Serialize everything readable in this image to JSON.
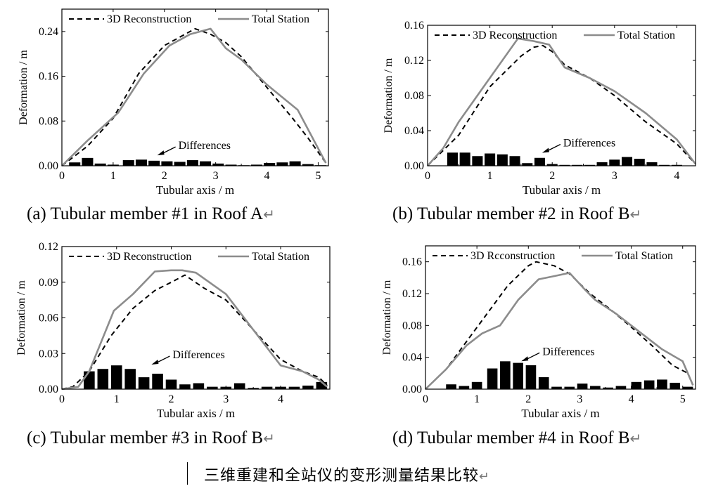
{
  "figure_caption": "三维重建和全站仪的变形测量结果比较",
  "return_mark": "↵",
  "legend_labels": [
    "3D Reconstruction",
    "Total Station"
  ],
  "chart_data": [
    {
      "type": "line",
      "subcaption": "(a) Tubular member #1 in Roof A",
      "xlabel": "Tubular axis / m",
      "ylabel": "Deformation / m",
      "xlim": [
        0,
        5.2
      ],
      "ylim": [
        0,
        0.28
      ],
      "xticks": [
        0,
        1,
        2,
        3,
        4,
        5
      ],
      "yticks": [
        0.0,
        0.08,
        0.16,
        0.24
      ],
      "ytick_labels": [
        "0.00",
        "0.08",
        "0.16",
        "0.24"
      ],
      "legend": "top",
      "annotation": {
        "text": "Differences",
        "x": 2.3,
        "y": 0.03
      },
      "series": [
        {
          "name": "3D Reconstruction",
          "style": "dashed",
          "color": "#000000",
          "x": [
            0,
            0.5,
            1.0,
            1.5,
            2.0,
            2.5,
            2.6,
            2.9,
            3.2,
            3.5,
            4.0,
            4.5,
            4.8,
            5.15
          ],
          "y": [
            0,
            0.035,
            0.085,
            0.165,
            0.215,
            0.24,
            0.245,
            0.235,
            0.22,
            0.195,
            0.14,
            0.085,
            0.05,
            0.005
          ]
        },
        {
          "name": "Total Station",
          "style": "solid",
          "color": "#8c8c8c",
          "x": [
            0,
            0.5,
            1.1,
            1.6,
            2.1,
            2.5,
            2.9,
            3.2,
            3.5,
            4.0,
            4.6,
            5.15
          ],
          "y": [
            0,
            0.045,
            0.095,
            0.165,
            0.215,
            0.235,
            0.245,
            0.21,
            0.19,
            0.145,
            0.1,
            0.005
          ]
        }
      ],
      "bars": {
        "name": "Differences",
        "width": 0.22,
        "x": [
          0.25,
          0.5,
          0.75,
          1.0,
          1.3,
          1.55,
          1.8,
          2.05,
          2.3,
          2.55,
          2.8,
          3.05,
          3.3,
          3.55,
          3.8,
          4.05,
          4.3,
          4.55,
          4.8,
          5.05
        ],
        "y": [
          0.006,
          0.014,
          0.004,
          0.002,
          0.01,
          0.011,
          0.009,
          0.008,
          0.007,
          0.01,
          0.008,
          0.004,
          0.002,
          0.001,
          0.002,
          0.005,
          0.006,
          0.008,
          0.003,
          0.001
        ]
      }
    },
    {
      "type": "line",
      "subcaption": "(b) Tubular member #2 in Roof B",
      "xlabel": "Tubular axis / m",
      "ylabel": "Deformation / m",
      "xlim": [
        0,
        4.3
      ],
      "ylim": [
        0,
        0.16
      ],
      "xticks": [
        0,
        1,
        2,
        3,
        4
      ],
      "yticks": [
        0.0,
        0.04,
        0.08,
        0.12,
        0.16
      ],
      "ytick_labels": [
        "0.00",
        "0.04",
        "0.08",
        "0.12",
        "0.16"
      ],
      "legend": "top",
      "annotation": {
        "text": "Differences",
        "x": 2.2,
        "y": 0.022
      },
      "series": [
        {
          "name": "3D Reconstruction",
          "style": "dashed",
          "color": "#000000",
          "x": [
            0,
            0.5,
            1.0,
            1.5,
            1.7,
            1.85,
            2.0,
            2.2,
            2.6,
            3.0,
            3.5,
            4.0,
            4.3
          ],
          "y": [
            0,
            0.035,
            0.09,
            0.125,
            0.135,
            0.137,
            0.13,
            0.115,
            0.1,
            0.08,
            0.05,
            0.025,
            0.002
          ]
        },
        {
          "name": "Total Station",
          "style": "solid",
          "color": "#8c8c8c",
          "x": [
            0,
            0.25,
            0.5,
            0.9,
            1.45,
            1.7,
            1.95,
            2.2,
            2.6,
            3.0,
            3.5,
            4.0,
            4.3
          ],
          "y": [
            0,
            0.02,
            0.05,
            0.09,
            0.145,
            0.142,
            0.138,
            0.112,
            0.1,
            0.085,
            0.06,
            0.03,
            0.002
          ]
        }
      ],
      "bars": {
        "name": "Differences",
        "width": 0.17,
        "x": [
          0.4,
          0.6,
          0.8,
          1.0,
          1.2,
          1.4,
          1.6,
          1.8,
          2.0,
          2.2,
          2.4,
          2.6,
          2.8,
          3.0,
          3.2,
          3.4,
          3.6,
          3.8,
          4.0
        ],
        "y": [
          0.015,
          0.015,
          0.011,
          0.014,
          0.013,
          0.011,
          0.003,
          0.009,
          0.002,
          0.001,
          0.001,
          0.001,
          0.004,
          0.007,
          0.01,
          0.008,
          0.004,
          0.001,
          0.001
        ]
      }
    },
    {
      "type": "line",
      "subcaption": "(c) Tubular member #3 in Roof B",
      "xlabel": "Tubular axis / m",
      "ylabel": "Deformation / m",
      "xlim": [
        0,
        4.9
      ],
      "ylim": [
        0,
        0.12
      ],
      "xticks": [
        0,
        1,
        2,
        3,
        4
      ],
      "yticks": [
        0.0,
        0.03,
        0.06,
        0.09,
        0.12
      ],
      "ytick_labels": [
        "0.00",
        "0.03",
        "0.06",
        "0.09",
        "0.12"
      ],
      "legend": "top",
      "annotation": {
        "text": "Differences",
        "x": 2.05,
        "y": 0.026
      },
      "series": [
        {
          "name": "3D Reconstruction",
          "style": "dashed",
          "color": "#000000",
          "x": [
            0,
            0.2,
            0.5,
            0.9,
            1.3,
            1.7,
            2.0,
            2.25,
            2.6,
            3.0,
            3.5,
            3.8,
            4.0,
            4.4,
            4.7,
            4.85
          ],
          "y": [
            0,
            0.002,
            0.015,
            0.045,
            0.068,
            0.083,
            0.09,
            0.096,
            0.085,
            0.075,
            0.05,
            0.035,
            0.025,
            0.015,
            0.01,
            0.003
          ]
        },
        {
          "name": "Total Station",
          "style": "solid",
          "color": "#8c8c8c",
          "x": [
            0,
            0.3,
            0.5,
            0.95,
            1.3,
            1.7,
            2.0,
            2.2,
            2.45,
            3.0,
            3.5,
            4.0,
            4.4,
            4.7,
            4.85
          ],
          "y": [
            0,
            0.002,
            0.015,
            0.066,
            0.08,
            0.099,
            0.1,
            0.1,
            0.098,
            0.08,
            0.05,
            0.02,
            0.015,
            0.008,
            0.002
          ]
        }
      ],
      "bars": {
        "name": "Differences",
        "width": 0.2,
        "x": [
          0.5,
          0.75,
          1.0,
          1.25,
          1.5,
          1.75,
          2.0,
          2.25,
          2.5,
          2.75,
          3.0,
          3.25,
          3.5,
          3.75,
          4.0,
          4.25,
          4.5,
          4.75
        ],
        "y": [
          0.015,
          0.017,
          0.02,
          0.017,
          0.01,
          0.013,
          0.008,
          0.004,
          0.005,
          0.002,
          0.002,
          0.005,
          0.001,
          0.002,
          0.002,
          0.002,
          0.003,
          0.006
        ]
      }
    },
    {
      "type": "line",
      "subcaption": "(d) Tubular member #4 in Roof B",
      "xlabel": "Tubular axis / m",
      "ylabel": "Deformation / m",
      "xlim": [
        0,
        5.25
      ],
      "ylim": [
        0,
        0.18
      ],
      "xticks": [
        0,
        1,
        2,
        3,
        4,
        5
      ],
      "yticks": [
        0.0,
        0.04,
        0.08,
        0.12,
        0.16
      ],
      "ytick_labels": [
        "0.00",
        "0.04",
        "0.08",
        "0.12",
        "0.16"
      ],
      "legend": "top",
      "annotation": {
        "text": "Differences",
        "x": 2.3,
        "y": 0.043
      },
      "series": [
        {
          "name": "3D Rcconstruction",
          "style": "dashed",
          "color": "#000000",
          "x": [
            0,
            0.4,
            0.8,
            1.2,
            1.6,
            2.0,
            2.15,
            2.5,
            2.8,
            3.2,
            3.6,
            4.0,
            4.4,
            4.8,
            5.1,
            5.2
          ],
          "y": [
            0,
            0.025,
            0.06,
            0.095,
            0.13,
            0.155,
            0.16,
            0.155,
            0.145,
            0.12,
            0.1,
            0.078,
            0.055,
            0.03,
            0.02,
            0.005
          ]
        },
        {
          "name": "Total Station",
          "style": "solid",
          "color": "#8c8c8c",
          "x": [
            0,
            0.4,
            0.8,
            1.1,
            1.45,
            1.8,
            2.2,
            2.5,
            2.8,
            3.1,
            3.3,
            3.7,
            4.2,
            4.6,
            5.0,
            5.2
          ],
          "y": [
            0,
            0.025,
            0.055,
            0.07,
            0.08,
            0.112,
            0.138,
            0.142,
            0.146,
            0.125,
            0.112,
            0.095,
            0.07,
            0.05,
            0.035,
            0.005
          ]
        }
      ],
      "bars": {
        "name": "Differences",
        "width": 0.2,
        "x": [
          0.5,
          0.75,
          1.0,
          1.3,
          1.55,
          1.8,
          2.05,
          2.3,
          2.55,
          2.8,
          3.05,
          3.3,
          3.55,
          3.8,
          4.1,
          4.35,
          4.6,
          4.85,
          5.1
        ],
        "y": [
          0.006,
          0.004,
          0.009,
          0.026,
          0.035,
          0.033,
          0.03,
          0.015,
          0.003,
          0.003,
          0.007,
          0.004,
          0.002,
          0.004,
          0.009,
          0.011,
          0.012,
          0.008,
          0.003
        ]
      }
    }
  ]
}
